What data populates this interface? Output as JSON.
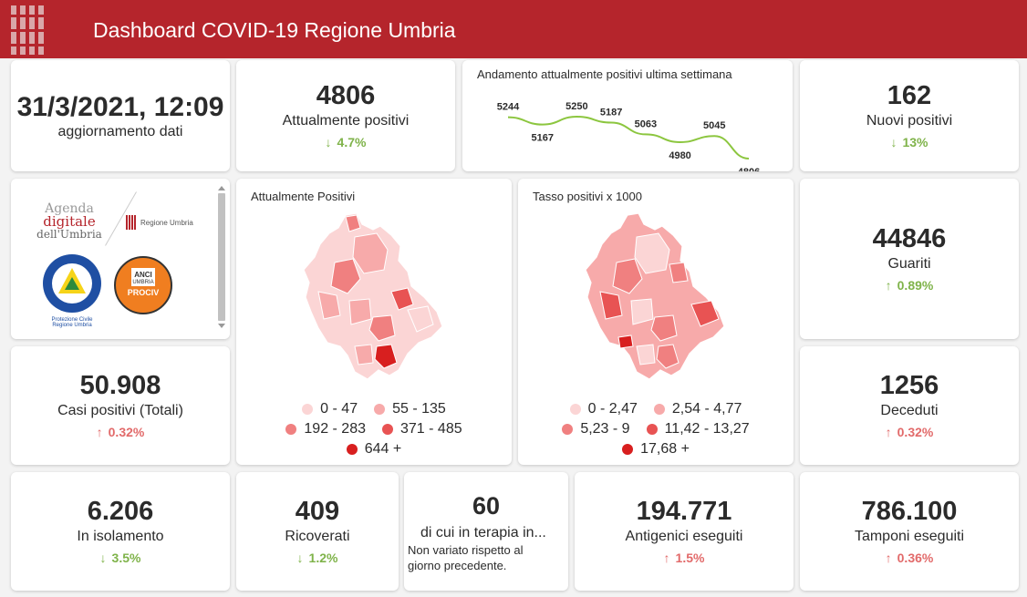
{
  "header": {
    "title": "Dashboard COVID-19 Regione Umbria"
  },
  "update": {
    "datetime": "31/3/2021, 12:09",
    "label": "aggiornamento dati"
  },
  "kpis": {
    "attualmente_positivi": {
      "value": "4806",
      "label": "Attualmente positivi",
      "trend": "4.7%",
      "direction": "down"
    },
    "nuovi_positivi": {
      "value": "162",
      "label": "Nuovi positivi",
      "trend": "13%",
      "direction": "down"
    },
    "guariti": {
      "value": "44846",
      "label": "Guariti",
      "trend": "0.89%",
      "direction": "up-good"
    },
    "casi_totali": {
      "value": "50.908",
      "label": "Casi positivi (Totali)",
      "trend": "0.32%",
      "direction": "up"
    },
    "deceduti": {
      "value": "1256",
      "label": "Deceduti",
      "trend": "0.32%",
      "direction": "up"
    },
    "isolamento": {
      "value": "6.206",
      "label": "In isolamento",
      "trend": "3.5%",
      "direction": "down"
    },
    "ricoverati": {
      "value": "409",
      "label": "Ricoverati",
      "trend": "1.2%",
      "direction": "down"
    },
    "terapia": {
      "value": "60",
      "label": "di cui in terapia in...",
      "note": "Non variato rispetto al giorno precedente."
    },
    "antigenici": {
      "value": "194.771",
      "label": "Antigenici eseguiti",
      "trend": "1.5%",
      "direction": "up"
    },
    "tamponi": {
      "value": "786.100",
      "label": "Tamponi eseguiti",
      "trend": "0.36%",
      "direction": "up"
    }
  },
  "logos": {
    "agenda_line1": "Agenda",
    "agenda_line2": "digitale",
    "agenda_line3": "dell'Umbria",
    "regione": "Regione Umbria",
    "protezione": "Protezione Civile",
    "protezione_sub": "Regione Umbria",
    "anci": "ANCI",
    "anci_sub": "UMBRIA",
    "prociv": "PROCIV"
  },
  "maps": {
    "positivi": {
      "title": "Attualmente Positivi",
      "legend": [
        "0 - 47",
        "55 - 135",
        "192 - 283",
        "371 - 485",
        "644 +"
      ]
    },
    "tasso": {
      "title": "Tasso positivi x 1000",
      "legend": [
        "0 - 2,47",
        "2,54 - 4,77",
        "5,23 - 9",
        "11,42 - 13,27",
        "17,68 +"
      ]
    },
    "legend_colors": [
      "#fbd5d5",
      "#f7aaaa",
      "#f08080",
      "#e85353",
      "#d81f1f"
    ]
  },
  "colors": {
    "header": "#b5252c",
    "trend_good": "#7fb34a",
    "trend_bad": "#e26a6a",
    "line": "#8cc63f"
  },
  "chart_data": {
    "type": "line",
    "title": "Andamento attualmente positivi ultima settimana",
    "values": [
      5244,
      5167,
      5250,
      5187,
      5063,
      4980,
      5045,
      4806
    ],
    "labels": [
      "5244",
      "5167",
      "5250",
      "5187",
      "5063",
      "4980",
      "5045",
      "4806"
    ],
    "xlabel": "",
    "ylabel": ""
  }
}
